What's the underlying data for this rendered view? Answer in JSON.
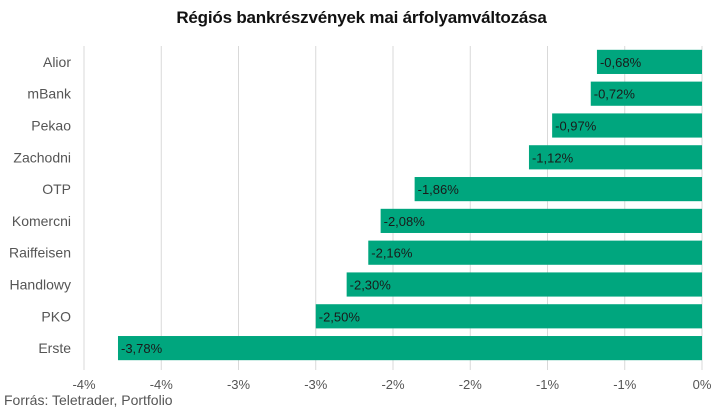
{
  "chart_data": {
    "type": "bar",
    "orientation": "horizontal",
    "title": "Régiós bankrészvények mai árfolyamváltozása",
    "categories": [
      "Alior",
      "mBank",
      "Pekao",
      "Zachodni",
      "OTP",
      "Komercni",
      "Raiffeisen",
      "Handlowy",
      "PKO",
      "Erste"
    ],
    "values": [
      -0.68,
      -0.72,
      -0.97,
      -1.12,
      -1.86,
      -2.08,
      -2.16,
      -2.3,
      -2.5,
      -3.78
    ],
    "data_labels": [
      "-0,68%",
      "-0,72%",
      "-0,97%",
      "-1,12%",
      "-1,86%",
      "-2,08%",
      "-2,16%",
      "-2,30%",
      "-2,50%",
      "-3,78%"
    ],
    "x_ticks": [
      -4,
      -3.5,
      -3,
      -2.5,
      -2,
      -1.5,
      -1,
      -0.5,
      0
    ],
    "x_tick_labels": [
      "-4%",
      "-4%",
      "-3%",
      "-3%",
      "-2%",
      "-2%",
      "-1%",
      "-1%",
      "0%"
    ],
    "xlim": [
      -4,
      0
    ],
    "grid": true,
    "bar_color": "#00a67e",
    "xlabel": "",
    "ylabel": ""
  },
  "source": "Forrás: Teletrader, Portfolio"
}
